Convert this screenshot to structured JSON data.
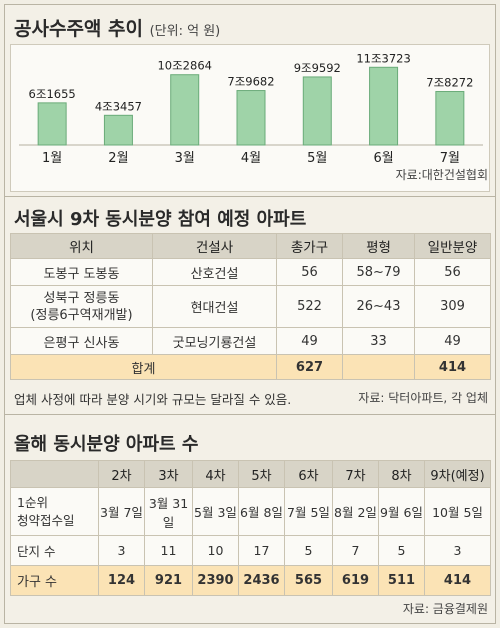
{
  "chart_data": {
    "type": "bar",
    "title": "공사수주액 추이",
    "unit": "(단위: 억 원)",
    "categories": [
      "1월",
      "2월",
      "3월",
      "4월",
      "5월",
      "6월",
      "7월"
    ],
    "labels": [
      "6조1655",
      "4조3457",
      "10조2864",
      "7조9682",
      "9조9592",
      "11조3723",
      "7조8272"
    ],
    "values": [
      61655,
      43457,
      102864,
      79682,
      99592,
      113723,
      78272
    ],
    "ylim": [
      0,
      120000
    ],
    "bar_color": "#9fd3a8",
    "bar_stroke": "#6aab79",
    "source": "자료:대한건설협회"
  },
  "table1": {
    "title": "서울시 9차 동시분양 참여 예정 아파트",
    "headers": [
      "위치",
      "건설사",
      "총가구",
      "평형",
      "일반분양"
    ],
    "rows": [
      [
        "도봉구 도봉동",
        "산호건설",
        "56",
        "58~79",
        "56"
      ],
      [
        "성북구 정릉동\n(정릉6구역재개발)",
        "현대건설",
        "522",
        "26~43",
        "309"
      ],
      [
        "은평구 신사동",
        "굿모닝기룡건설",
        "49",
        "33",
        "49"
      ]
    ],
    "total": {
      "label": "합계",
      "households": "627",
      "general": "414"
    },
    "note": "업체 사정에 따라 분양 시기와 규모는 달라질 수 있음.",
    "source": "자료: 닥터아파트, 각 업체"
  },
  "table2": {
    "title": "올해 동시분양 아파트 수",
    "headers": [
      "",
      "2차",
      "3차",
      "4차",
      "5차",
      "6차",
      "7차",
      "8차",
      "9차(예정)"
    ],
    "rows": [
      {
        "label": "1순위\n청약접수일",
        "values": [
          "3월 7일",
          "3월 31일",
          "5월 3일",
          "6월 8일",
          "7월 5일",
          "8월 2일",
          "9월 6일",
          "10월 5일"
        ]
      },
      {
        "label": "단지 수",
        "values": [
          "3",
          "11",
          "10",
          "17",
          "5",
          "7",
          "5",
          "3"
        ]
      },
      {
        "label": "가구 수",
        "values": [
          "124",
          "921",
          "2390",
          "2436",
          "565",
          "619",
          "511",
          "414"
        ]
      }
    ],
    "source": "자료: 금융결제원"
  }
}
